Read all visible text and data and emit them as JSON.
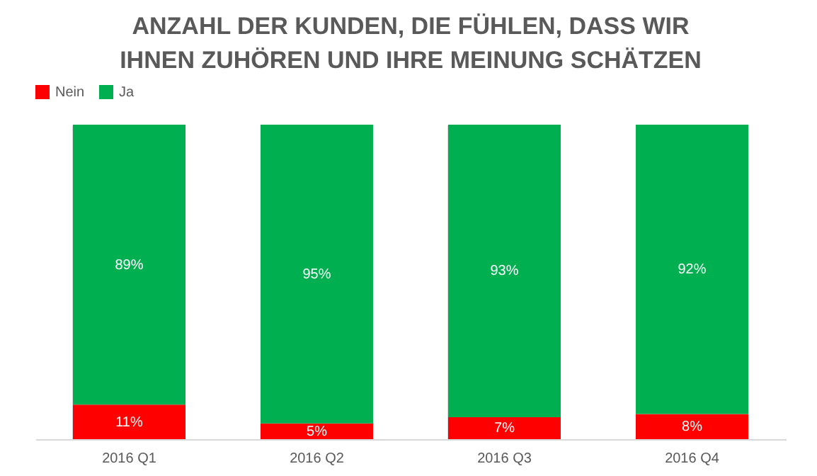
{
  "chart_data": {
    "type": "bar",
    "title": "ANZAHL DER KUNDEN, DIE FÜHLEN, DASS WIR IHNEN ZUHÖREN UND IHRE MEINUNG SCHÄTZEN",
    "categories": [
      "2016 Q1",
      "2016 Q2",
      "2016 Q3",
      "2016 Q4"
    ],
    "stacked": true,
    "series": [
      {
        "name": "Nein",
        "color": "#ff0000",
        "values": [
          11,
          5,
          7,
          8
        ],
        "value_labels": [
          "11%",
          "5%",
          "7%",
          "8%"
        ]
      },
      {
        "name": "Ja",
        "color": "#00b050",
        "values": [
          89,
          95,
          93,
          92
        ],
        "value_labels": [
          "89%",
          "95%",
          "93%",
          "92%"
        ]
      }
    ],
    "legend": "top",
    "grid": "x"
  }
}
